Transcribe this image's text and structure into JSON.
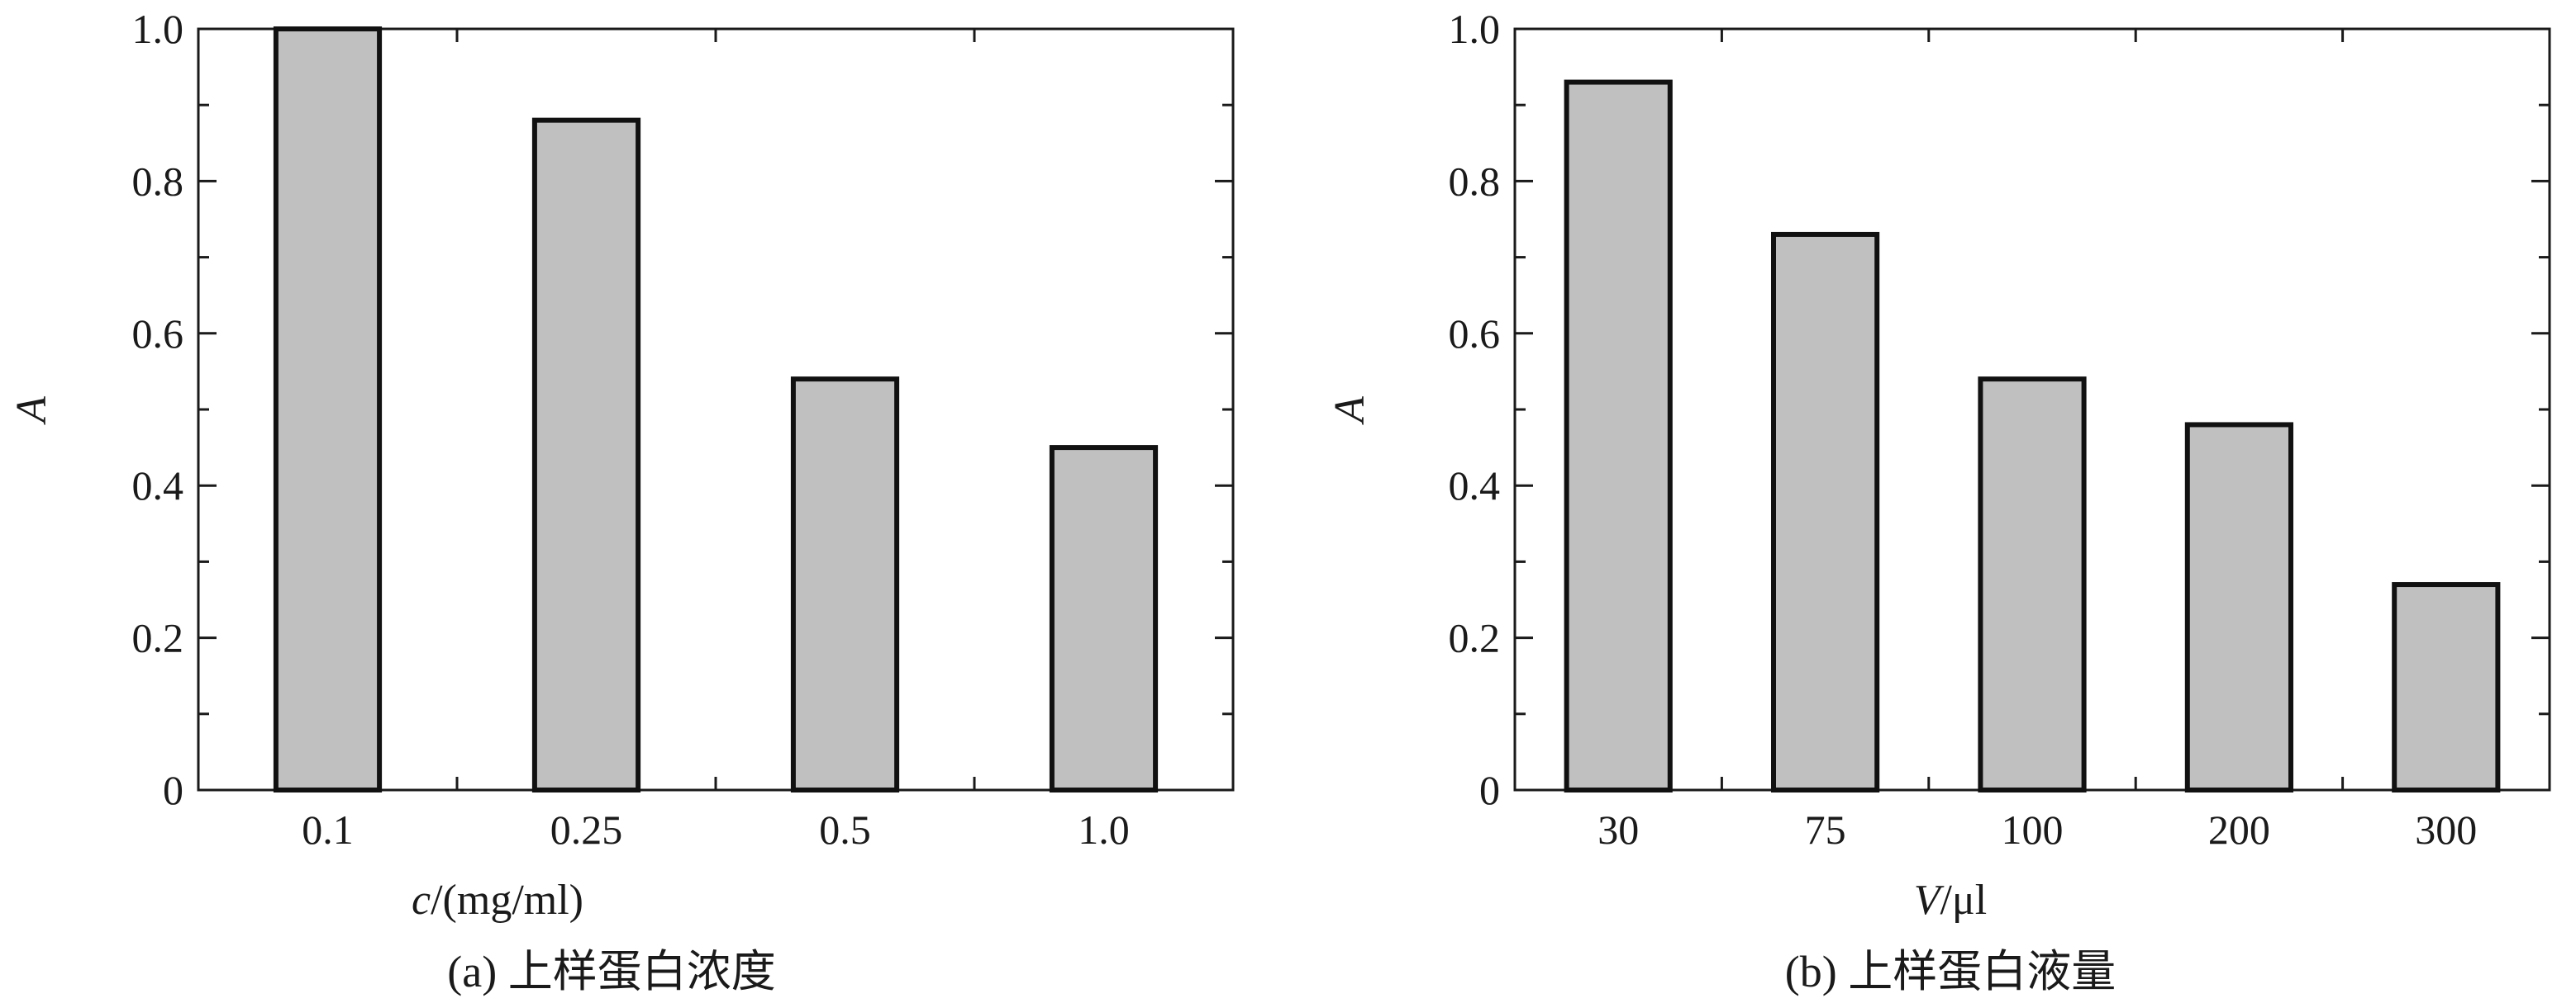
{
  "chart_data": [
    {
      "type": "bar",
      "categories": [
        "0.1",
        "0.25",
        "0.5",
        "1.0"
      ],
      "values": [
        1.0,
        0.88,
        0.54,
        0.45
      ],
      "xlabel_italic": "c",
      "xlabel_rest": "/(mg/ml)",
      "ylabel": "A",
      "ylim": [
        0,
        1.0
      ],
      "yticks": [
        "0",
        "0.2",
        "0.4",
        "0.6",
        "0.8",
        "1.0"
      ],
      "caption": "(a) 上样蛋白浓度",
      "bar_color": "#c0c0c0",
      "grid": false,
      "legend": "none"
    },
    {
      "type": "bar",
      "categories": [
        "30",
        "75",
        "100",
        "200",
        "300"
      ],
      "values": [
        0.93,
        0.73,
        0.54,
        0.48,
        0.27
      ],
      "xlabel_italic": "V",
      "xlabel_rest": "/μl",
      "ylabel": "A",
      "ylim": [
        0,
        1.0
      ],
      "yticks": [
        "0",
        "0.2",
        "0.4",
        "0.6",
        "0.8",
        "1.0"
      ],
      "caption": "(b) 上样蛋白液量",
      "bar_color": "#c0c0c0",
      "grid": false,
      "legend": "none"
    }
  ]
}
